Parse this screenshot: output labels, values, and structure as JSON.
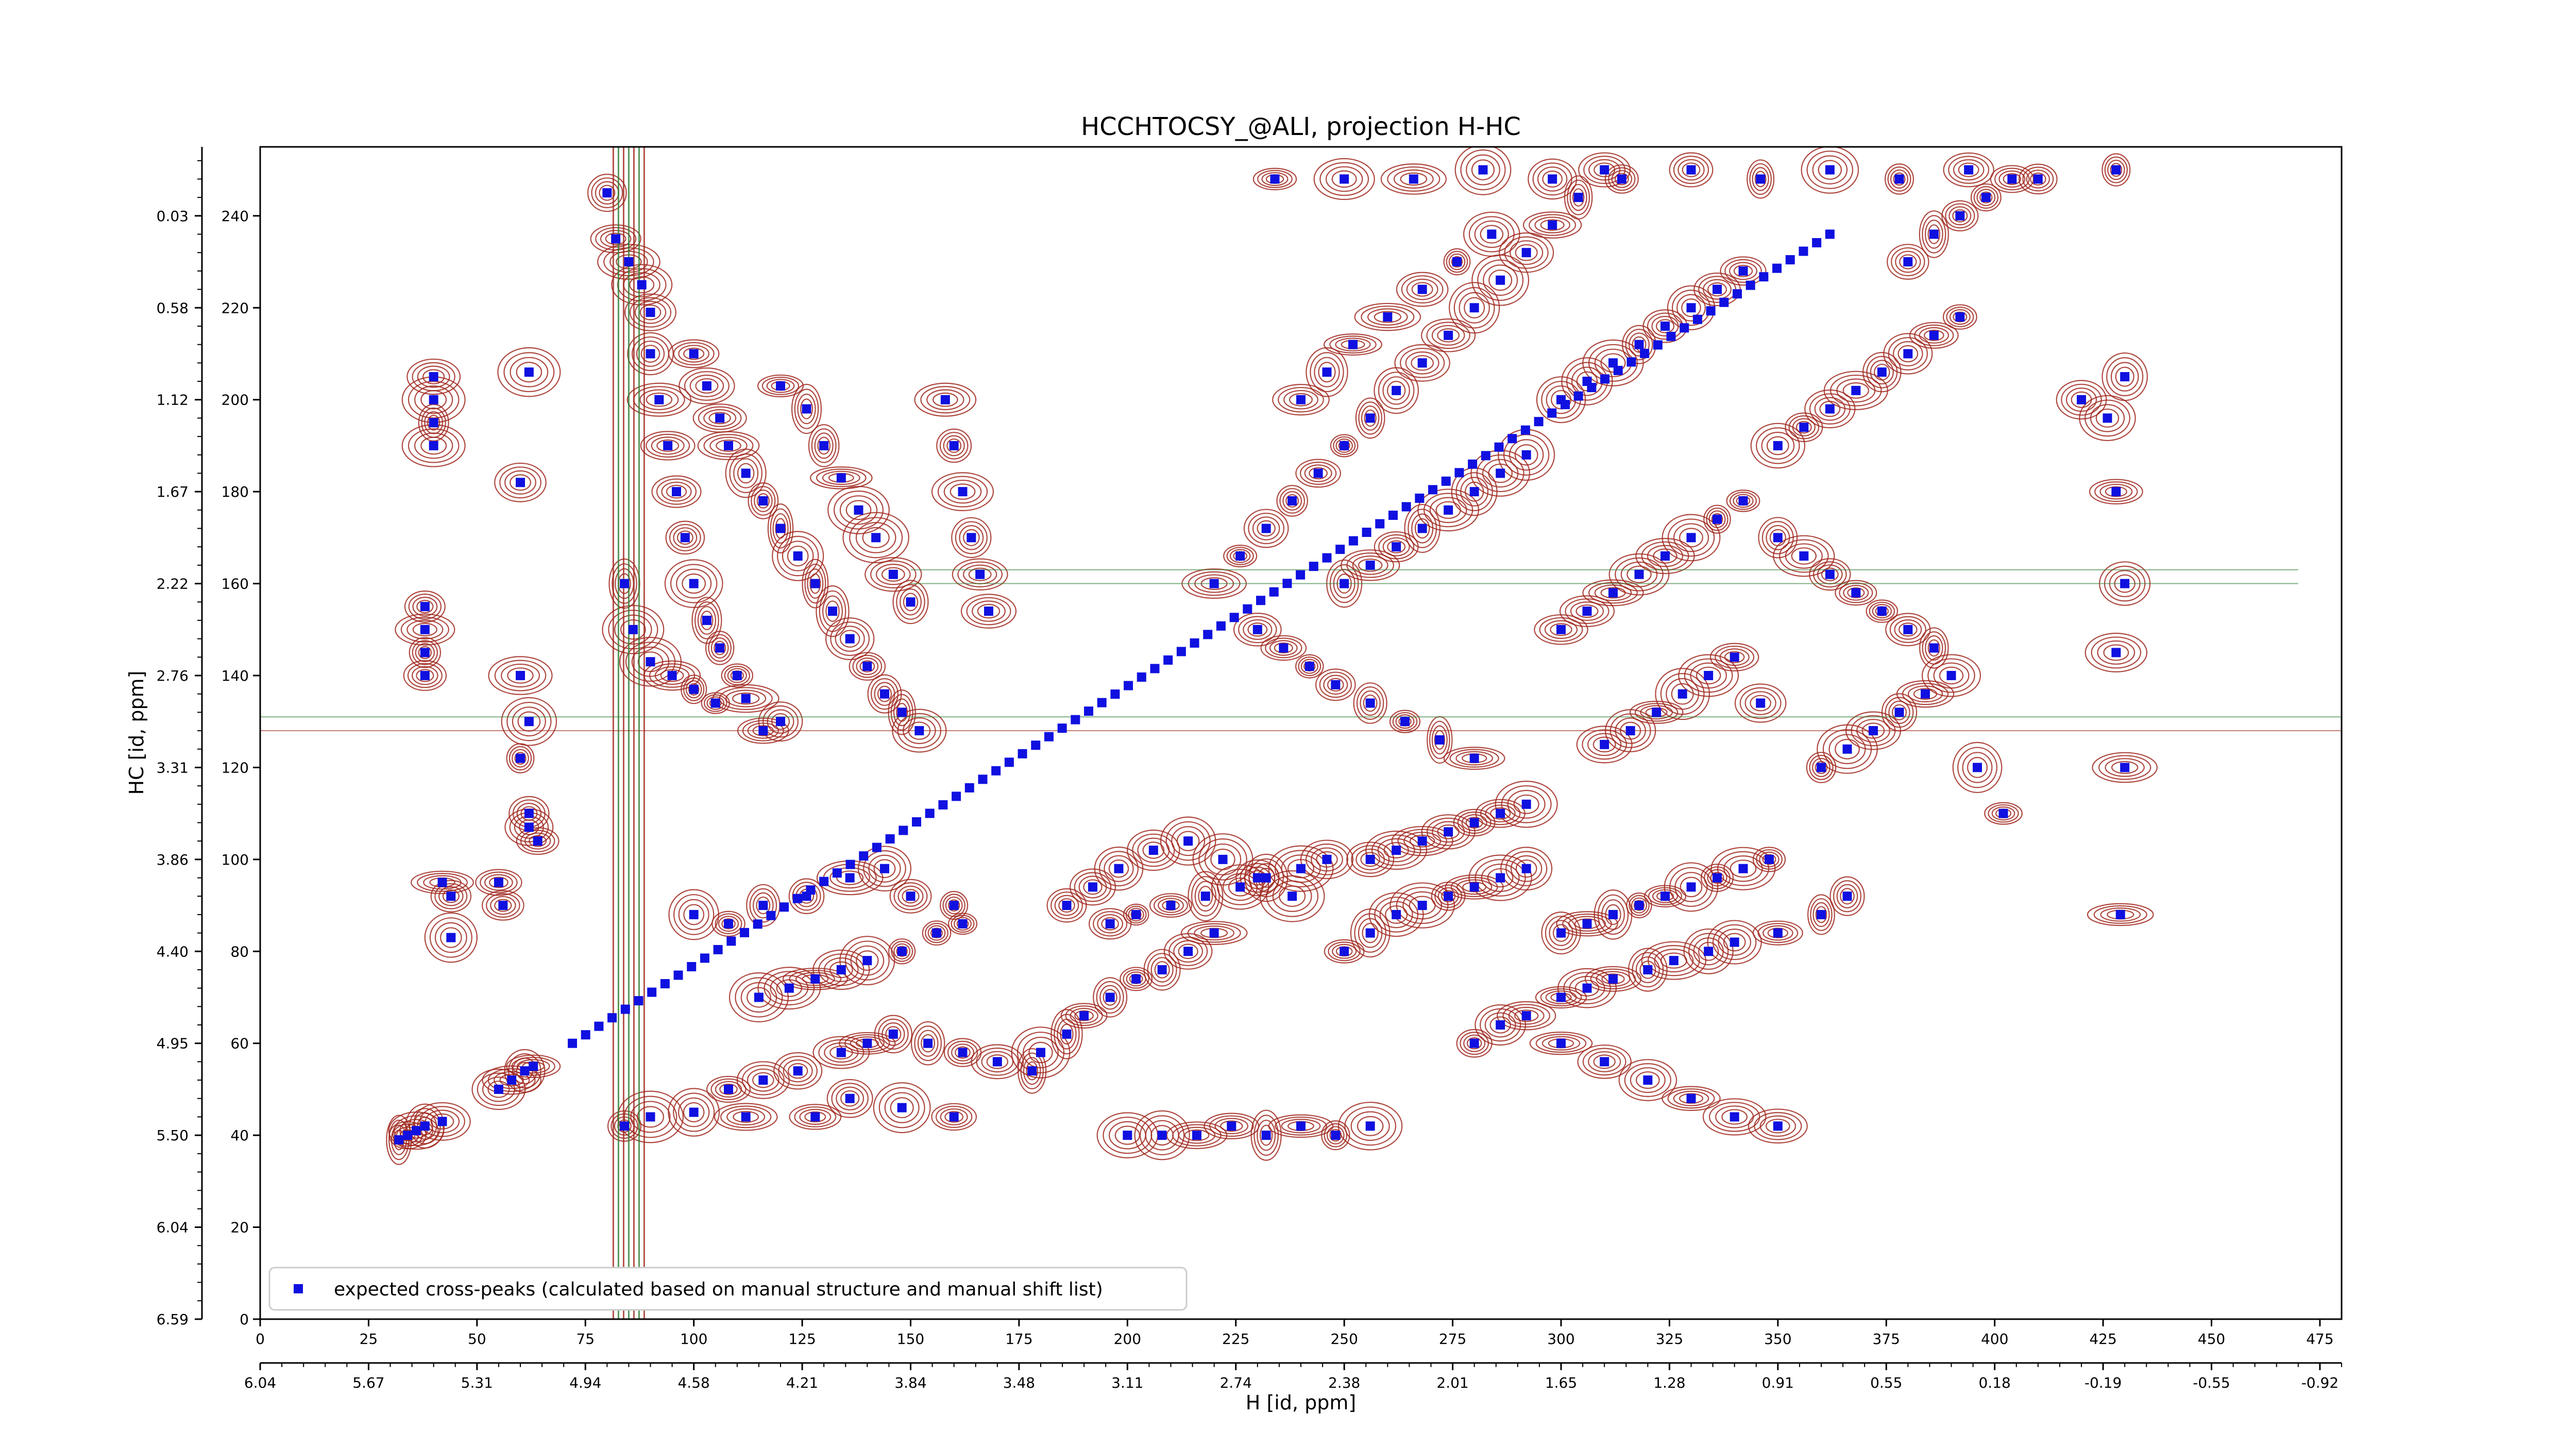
{
  "chart_data": {
    "type": "scatter",
    "title": "HCCHTOCSY_@ALI, projection H-HC",
    "xlabel": "H [id, ppm]",
    "ylabel": "HC [id, ppm]",
    "xlim": [
      0,
      480
    ],
    "ylim": [
      0,
      255
    ],
    "x_ticks": [
      0,
      25,
      50,
      75,
      100,
      125,
      150,
      175,
      200,
      225,
      250,
      275,
      300,
      325,
      350,
      375,
      400,
      425,
      450,
      475
    ],
    "x_ppm_labels": [
      "6.04",
      "5.67",
      "5.31",
      "4.94",
      "4.58",
      "4.21",
      "3.84",
      "3.48",
      "3.11",
      "2.74",
      "2.38",
      "2.01",
      "1.65",
      "1.28",
      "0.91",
      "0.55",
      "0.18",
      "-0.19",
      "-0.55",
      "-0.92"
    ],
    "y_ticks": [
      0,
      20,
      40,
      60,
      80,
      100,
      120,
      140,
      160,
      180,
      200,
      220,
      240
    ],
    "y_ppm_labels": [
      "6.59",
      "6.04",
      "5.50",
      "4.95",
      "4.40",
      "3.86",
      "3.31",
      "2.76",
      "2.22",
      "1.67",
      "1.12",
      "0.58",
      "0.03"
    ],
    "legend": {
      "placement": "lower-left",
      "label": "expected cross-peaks (calculated based on manual structure and manual shift list)"
    },
    "colors": {
      "positive_contour": "#a0281e",
      "negative_contour": "#2e7d32",
      "marker": "#1010e0"
    },
    "diagonal": {
      "from": [
        72,
        60
      ],
      "to": [
        362,
        236
      ]
    },
    "solvent_stripe_x": 85,
    "series": [
      {
        "name": "expected cross-peaks (calculated based on manual structure and manual shift list)",
        "points": [
          [
            32,
            39
          ],
          [
            34,
            40
          ],
          [
            36,
            41
          ],
          [
            38,
            42
          ],
          [
            42,
            43
          ],
          [
            55,
            50
          ],
          [
            58,
            52
          ],
          [
            61,
            54
          ],
          [
            63,
            55
          ],
          [
            40,
            205
          ],
          [
            40,
            200
          ],
          [
            40,
            195
          ],
          [
            40,
            190
          ],
          [
            60,
            182
          ],
          [
            62,
            206
          ],
          [
            38,
            155
          ],
          [
            38,
            150
          ],
          [
            38,
            145
          ],
          [
            38,
            140
          ],
          [
            60,
            140
          ],
          [
            62,
            130
          ],
          [
            60,
            122
          ],
          [
            62,
            107
          ],
          [
            64,
            104
          ],
          [
            42,
            95
          ],
          [
            44,
            92
          ],
          [
            44,
            83
          ],
          [
            55,
            95
          ],
          [
            56,
            90
          ],
          [
            62,
            110
          ],
          [
            80,
            245
          ],
          [
            82,
            235
          ],
          [
            85,
            230
          ],
          [
            88,
            225
          ],
          [
            90,
            219
          ],
          [
            90,
            210
          ],
          [
            92,
            200
          ],
          [
            94,
            190
          ],
          [
            96,
            180
          ],
          [
            98,
            170
          ],
          [
            100,
            160
          ],
          [
            103,
            152
          ],
          [
            106,
            146
          ],
          [
            110,
            140
          ],
          [
            112,
            135
          ],
          [
            116,
            128
          ],
          [
            120,
            130
          ],
          [
            84,
            160
          ],
          [
            86,
            150
          ],
          [
            90,
            143
          ],
          [
            95,
            140
          ],
          [
            100,
            137
          ],
          [
            105,
            134
          ],
          [
            100,
            210
          ],
          [
            103,
            203
          ],
          [
            106,
            196
          ],
          [
            108,
            190
          ],
          [
            112,
            184
          ],
          [
            116,
            178
          ],
          [
            120,
            172
          ],
          [
            124,
            166
          ],
          [
            128,
            160
          ],
          [
            132,
            154
          ],
          [
            136,
            148
          ],
          [
            140,
            142
          ],
          [
            144,
            136
          ],
          [
            148,
            132
          ],
          [
            152,
            128
          ],
          [
            120,
            203
          ],
          [
            126,
            198
          ],
          [
            130,
            190
          ],
          [
            134,
            183
          ],
          [
            138,
            176
          ],
          [
            142,
            170
          ],
          [
            146,
            162
          ],
          [
            150,
            156
          ],
          [
            158,
            200
          ],
          [
            160,
            190
          ],
          [
            162,
            180
          ],
          [
            164,
            170
          ],
          [
            166,
            162
          ],
          [
            168,
            154
          ],
          [
            84,
            42
          ],
          [
            90,
            44
          ],
          [
            100,
            45
          ],
          [
            112,
            44
          ],
          [
            128,
            44
          ],
          [
            136,
            48
          ],
          [
            148,
            46
          ],
          [
            160,
            44
          ],
          [
            108,
            50
          ],
          [
            116,
            52
          ],
          [
            124,
            54
          ],
          [
            134,
            58
          ],
          [
            140,
            60
          ],
          [
            146,
            62
          ],
          [
            154,
            60
          ],
          [
            162,
            58
          ],
          [
            170,
            56
          ],
          [
            178,
            54
          ],
          [
            115,
            70
          ],
          [
            122,
            72
          ],
          [
            128,
            74
          ],
          [
            134,
            76
          ],
          [
            140,
            78
          ],
          [
            148,
            80
          ],
          [
            156,
            84
          ],
          [
            162,
            86
          ],
          [
            100,
            88
          ],
          [
            108,
            86
          ],
          [
            116,
            90
          ],
          [
            126,
            92
          ],
          [
            136,
            96
          ],
          [
            144,
            98
          ],
          [
            150,
            92
          ],
          [
            160,
            90
          ],
          [
            180,
            58
          ],
          [
            186,
            62
          ],
          [
            190,
            66
          ],
          [
            196,
            70
          ],
          [
            202,
            74
          ],
          [
            208,
            76
          ],
          [
            214,
            80
          ],
          [
            220,
            84
          ],
          [
            196,
            86
          ],
          [
            202,
            88
          ],
          [
            210,
            90
          ],
          [
            218,
            92
          ],
          [
            226,
            94
          ],
          [
            232,
            96
          ],
          [
            240,
            98
          ],
          [
            246,
            100
          ],
          [
            186,
            90
          ],
          [
            192,
            94
          ],
          [
            198,
            98
          ],
          [
            206,
            102
          ],
          [
            214,
            104
          ],
          [
            222,
            100
          ],
          [
            230,
            96
          ],
          [
            238,
            92
          ],
          [
            250,
            80
          ],
          [
            256,
            84
          ],
          [
            262,
            88
          ],
          [
            268,
            90
          ],
          [
            274,
            92
          ],
          [
            280,
            94
          ],
          [
            286,
            96
          ],
          [
            292,
            98
          ],
          [
            256,
            100
          ],
          [
            262,
            102
          ],
          [
            268,
            104
          ],
          [
            274,
            106
          ],
          [
            280,
            108
          ],
          [
            286,
            110
          ],
          [
            292,
            112
          ],
          [
            300,
            84
          ],
          [
            306,
            86
          ],
          [
            312,
            88
          ],
          [
            318,
            90
          ],
          [
            324,
            92
          ],
          [
            330,
            94
          ],
          [
            336,
            96
          ],
          [
            342,
            98
          ],
          [
            348,
            100
          ],
          [
            300,
            70
          ],
          [
            306,
            72
          ],
          [
            312,
            74
          ],
          [
            320,
            76
          ],
          [
            326,
            78
          ],
          [
            334,
            80
          ],
          [
            340,
            82
          ],
          [
            350,
            84
          ],
          [
            360,
            88
          ],
          [
            366,
            92
          ],
          [
            280,
            60
          ],
          [
            286,
            64
          ],
          [
            292,
            66
          ],
          [
            300,
            60
          ],
          [
            310,
            56
          ],
          [
            320,
            52
          ],
          [
            330,
            48
          ],
          [
            340,
            44
          ],
          [
            350,
            42
          ],
          [
            200,
            40
          ],
          [
            208,
            40
          ],
          [
            216,
            40
          ],
          [
            224,
            42
          ],
          [
            232,
            40
          ],
          [
            240,
            42
          ],
          [
            248,
            40
          ],
          [
            256,
            42
          ],
          [
            220,
            160
          ],
          [
            226,
            166
          ],
          [
            232,
            172
          ],
          [
            238,
            178
          ],
          [
            244,
            184
          ],
          [
            250,
            190
          ],
          [
            256,
            196
          ],
          [
            262,
            202
          ],
          [
            268,
            208
          ],
          [
            274,
            214
          ],
          [
            280,
            220
          ],
          [
            286,
            226
          ],
          [
            292,
            232
          ],
          [
            298,
            238
          ],
          [
            304,
            244
          ],
          [
            310,
            250
          ],
          [
            230,
            150
          ],
          [
            236,
            146
          ],
          [
            242,
            142
          ],
          [
            248,
            138
          ],
          [
            256,
            134
          ],
          [
            264,
            130
          ],
          [
            272,
            126
          ],
          [
            280,
            122
          ],
          [
            240,
            200
          ],
          [
            246,
            206
          ],
          [
            252,
            212
          ],
          [
            260,
            218
          ],
          [
            268,
            224
          ],
          [
            276,
            230
          ],
          [
            284,
            236
          ],
          [
            250,
            160
          ],
          [
            256,
            164
          ],
          [
            262,
            168
          ],
          [
            268,
            172
          ],
          [
            274,
            176
          ],
          [
            280,
            180
          ],
          [
            286,
            184
          ],
          [
            292,
            188
          ],
          [
            300,
            150
          ],
          [
            306,
            154
          ],
          [
            312,
            158
          ],
          [
            318,
            162
          ],
          [
            324,
            166
          ],
          [
            330,
            170
          ],
          [
            336,
            174
          ],
          [
            342,
            178
          ],
          [
            300,
            200
          ],
          [
            306,
            204
          ],
          [
            312,
            208
          ],
          [
            318,
            212
          ],
          [
            324,
            216
          ],
          [
            330,
            220
          ],
          [
            336,
            224
          ],
          [
            342,
            228
          ],
          [
            350,
            190
          ],
          [
            356,
            194
          ],
          [
            362,
            198
          ],
          [
            368,
            202
          ],
          [
            374,
            206
          ],
          [
            380,
            210
          ],
          [
            386,
            214
          ],
          [
            392,
            218
          ],
          [
            350,
            170
          ],
          [
            356,
            166
          ],
          [
            362,
            162
          ],
          [
            368,
            158
          ],
          [
            374,
            154
          ],
          [
            380,
            150
          ],
          [
            386,
            146
          ],
          [
            380,
            230
          ],
          [
            386,
            236
          ],
          [
            392,
            240
          ],
          [
            398,
            244
          ],
          [
            404,
            248
          ],
          [
            420,
            200
          ],
          [
            426,
            196
          ],
          [
            430,
            205
          ],
          [
            428,
            180
          ],
          [
            430,
            160
          ],
          [
            428,
            145
          ],
          [
            430,
            120
          ],
          [
            429,
            88
          ],
          [
            360,
            120
          ],
          [
            366,
            124
          ],
          [
            372,
            128
          ],
          [
            378,
            132
          ],
          [
            384,
            136
          ],
          [
            390,
            140
          ],
          [
            396,
            120
          ],
          [
            402,
            110
          ],
          [
            310,
            125
          ],
          [
            316,
            128
          ],
          [
            322,
            132
          ],
          [
            328,
            136
          ],
          [
            334,
            140
          ],
          [
            340,
            144
          ],
          [
            346,
            134
          ],
          [
            234,
            248
          ],
          [
            250,
            248
          ],
          [
            266,
            248
          ],
          [
            282,
            250
          ],
          [
            298,
            248
          ],
          [
            314,
            248
          ],
          [
            330,
            250
          ],
          [
            346,
            248
          ],
          [
            362,
            250
          ],
          [
            378,
            248
          ],
          [
            394,
            250
          ],
          [
            410,
            248
          ],
          [
            428,
            250
          ]
        ]
      }
    ]
  }
}
